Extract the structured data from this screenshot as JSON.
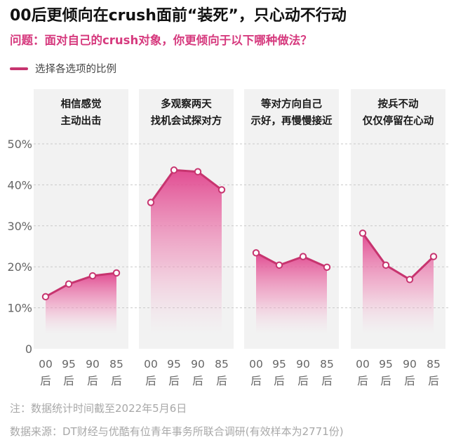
{
  "header": {
    "title": "00后更倾向在crush面前“装死”，只心动不行动",
    "subtitle": "问题：面对自己的crush对象，你更倾向于以下哪种做法？"
  },
  "legend": {
    "label": "选择各选项的比例"
  },
  "footer": {
    "note": "注：数据统计时间截至2022年5月6日",
    "source": "数据来源：DT财经与优酷有位青年事务所联合调研(有效样本为2771份)"
  },
  "colors": {
    "line": "#c7346f",
    "fill": "#e6559a",
    "panel": "#f2f2f2",
    "grid": "#c9c9c9",
    "axis_text": "#666666"
  },
  "chart_data": {
    "type": "line",
    "x": [
      "00后",
      "95后",
      "90后",
      "85后"
    ],
    "x_tick_labels": [
      [
        "00",
        "后"
      ],
      [
        "95",
        "后"
      ],
      [
        "90",
        "后"
      ],
      [
        "85",
        "后"
      ]
    ],
    "yticks": [
      "0",
      "10%",
      "20%",
      "30%",
      "40%",
      "50%"
    ],
    "ylim": [
      0,
      50
    ],
    "grid": true,
    "legend_position": "top-left",
    "panels": [
      {
        "title_lines": [
          "相信感觉",
          "主动出击"
        ],
        "values": [
          12.7,
          15.8,
          17.8,
          18.5
        ]
      },
      {
        "title_lines": [
          "多观察两天",
          "找机会试探对方"
        ],
        "values": [
          35.7,
          43.6,
          43.2,
          38.8
        ]
      },
      {
        "title_lines": [
          "等对方向自己",
          "示好，再慢慢接近"
        ],
        "values": [
          23.4,
          20.4,
          22.5,
          19.9
        ]
      },
      {
        "title_lines": [
          "按兵不动",
          "仅仅停留在心动"
        ],
        "values": [
          28.2,
          20.4,
          16.9,
          22.5
        ]
      }
    ]
  }
}
